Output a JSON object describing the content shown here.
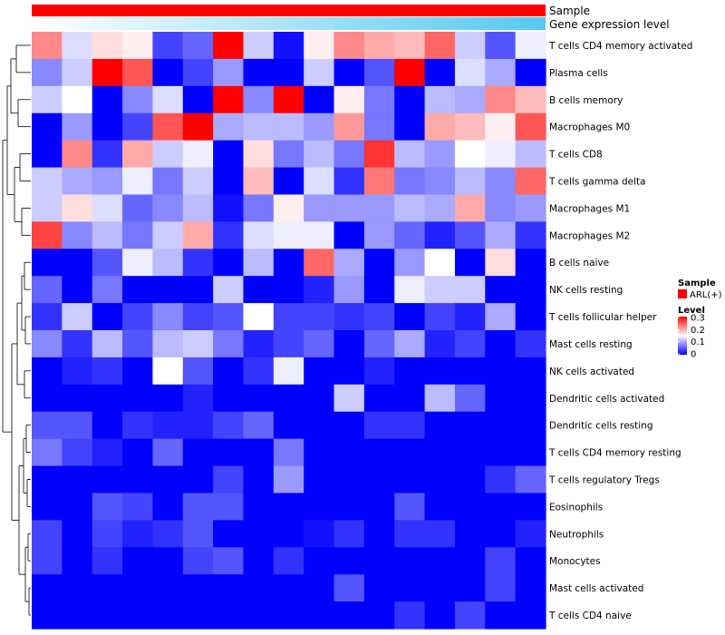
{
  "chart_data": {
    "type": "heatmap",
    "title": "",
    "annotations": [
      {
        "name": "Sample",
        "style": "solid",
        "color": "#ff0000"
      },
      {
        "name": "Gene expression level",
        "style": "gradient",
        "colors": [
          "#ffffff",
          "#55c8f0"
        ]
      }
    ],
    "rows": [
      "T cells CD4 memory activated",
      "Plasma cells",
      "B cells memory",
      "Macrophages M0",
      "T cells CD8",
      "T cells gamma delta",
      "Macrophages M1",
      "Macrophages M2",
      "B cells naive",
      "NK cells resting",
      "T cells follicular helper",
      "Mast cells resting",
      "NK cells activated",
      "Dendritic cells activated",
      "Dendritic cells resting",
      "T cells CD4 memory resting",
      "T cells regulatory  Tregs",
      "Eosinophils",
      "Neutrophils",
      "Monocytes",
      "Mast cells activated",
      "T cells CD4 naive"
    ],
    "n_columns": 17,
    "values": [
      [
        0.22,
        0.13,
        0.17,
        0.16,
        0.04,
        0.06,
        0.3,
        0.12,
        0.01,
        0.16,
        0.22,
        0.2,
        0.19,
        0.24,
        0.12,
        0.05,
        0.14
      ],
      [
        0.08,
        0.12,
        0.3,
        0.25,
        0.0,
        0.04,
        0.09,
        0.0,
        0.0,
        0.12,
        0.0,
        0.05,
        0.3,
        0.0,
        0.13,
        0.1,
        0.0
      ],
      [
        0.12,
        0.15,
        0.0,
        0.08,
        0.13,
        0.0,
        0.3,
        0.08,
        0.3,
        0.0,
        0.16,
        0.07,
        0.0,
        0.11,
        0.1,
        0.22,
        0.19
      ],
      [
        0.0,
        0.09,
        0.0,
        0.04,
        0.25,
        0.3,
        0.1,
        0.11,
        0.11,
        0.09,
        0.21,
        0.07,
        0.0,
        0.2,
        0.19,
        0.16,
        0.25
      ],
      [
        0.0,
        0.22,
        0.03,
        0.2,
        0.12,
        0.14,
        0.0,
        0.17,
        0.07,
        0.11,
        0.07,
        0.27,
        0.11,
        0.09,
        0.15,
        0.14,
        0.11
      ],
      [
        0.12,
        0.1,
        0.09,
        0.14,
        0.07,
        0.12,
        0.0,
        0.19,
        0.0,
        0.13,
        0.03,
        0.23,
        0.07,
        0.08,
        0.11,
        0.08,
        0.24
      ],
      [
        0.12,
        0.17,
        0.13,
        0.06,
        0.08,
        0.11,
        0.01,
        0.07,
        0.16,
        0.09,
        0.09,
        0.09,
        0.11,
        0.1,
        0.2,
        0.08,
        0.09
      ],
      [
        0.26,
        0.08,
        0.11,
        0.07,
        0.12,
        0.2,
        0.03,
        0.13,
        0.14,
        0.14,
        0.0,
        0.09,
        0.06,
        0.02,
        0.05,
        0.1,
        0.03
      ],
      [
        0.0,
        0.0,
        0.05,
        0.14,
        0.11,
        0.03,
        0.0,
        0.11,
        0.0,
        0.24,
        0.1,
        0.0,
        0.09,
        0.15,
        0.0,
        0.17,
        0.0
      ],
      [
        0.06,
        0.0,
        0.07,
        0.0,
        0.0,
        0.0,
        0.12,
        0.0,
        0.0,
        0.02,
        0.09,
        0.0,
        0.14,
        0.12,
        0.12,
        0.0,
        0.0
      ],
      [
        0.03,
        0.12,
        0.0,
        0.04,
        0.08,
        0.04,
        0.05,
        0.15,
        0.04,
        0.04,
        0.03,
        0.04,
        0.0,
        0.04,
        0.02,
        0.1,
        0.0
      ],
      [
        0.08,
        0.03,
        0.11,
        0.05,
        0.11,
        0.12,
        0.07,
        0.02,
        0.04,
        0.06,
        0.0,
        0.06,
        0.1,
        0.02,
        0.04,
        0.0,
        0.03
      ],
      [
        0.0,
        0.02,
        0.03,
        0.0,
        0.15,
        0.05,
        0.0,
        0.03,
        0.14,
        0.0,
        0.0,
        0.02,
        0.0,
        0.0,
        0.0,
        0.0,
        0.0
      ],
      [
        0.0,
        0.0,
        0.0,
        0.0,
        0.0,
        0.02,
        0.0,
        0.0,
        0.0,
        0.0,
        0.12,
        0.0,
        0.0,
        0.11,
        0.06,
        0.0,
        0.0
      ],
      [
        0.05,
        0.05,
        0.0,
        0.03,
        0.02,
        0.02,
        0.04,
        0.06,
        0.0,
        0.0,
        0.0,
        0.03,
        0.03,
        0.0,
        0.0,
        0.0,
        0.0
      ],
      [
        0.07,
        0.04,
        0.02,
        0.0,
        0.06,
        0.0,
        0.0,
        0.0,
        0.07,
        0.0,
        0.0,
        0.0,
        0.0,
        0.0,
        0.0,
        0.0,
        0.0
      ],
      [
        0.0,
        0.0,
        0.0,
        0.0,
        0.0,
        0.0,
        0.04,
        0.0,
        0.09,
        0.0,
        0.0,
        0.0,
        0.0,
        0.0,
        0.0,
        0.03,
        0.06
      ],
      [
        0.0,
        0.0,
        0.05,
        0.04,
        0.0,
        0.05,
        0.05,
        0.0,
        0.0,
        0.0,
        0.0,
        0.0,
        0.05,
        0.0,
        0.0,
        0.0,
        0.0
      ],
      [
        0.04,
        0.0,
        0.04,
        0.02,
        0.03,
        0.05,
        0.0,
        0.0,
        0.0,
        0.01,
        0.03,
        0.0,
        0.03,
        0.03,
        0.0,
        0.0,
        0.02
      ],
      [
        0.04,
        0.0,
        0.03,
        0.0,
        0.0,
        0.04,
        0.05,
        0.0,
        0.03,
        0.0,
        0.0,
        0.0,
        0.0,
        0.0,
        0.0,
        0.04,
        0.0
      ],
      [
        0.0,
        0.0,
        0.0,
        0.0,
        0.0,
        0.0,
        0.0,
        0.0,
        0.0,
        0.0,
        0.05,
        0.0,
        0.0,
        0.0,
        0.0,
        0.04,
        0.0
      ],
      [
        0.0,
        0.0,
        0.0,
        0.0,
        0.0,
        0.0,
        0.0,
        0.0,
        0.0,
        0.0,
        0.0,
        0.0,
        0.03,
        0.0,
        0.04,
        0.0,
        0.0
      ]
    ],
    "color_scale": {
      "low": "#0000ff",
      "mid": "#ffffff",
      "high": "#ff0000",
      "min": 0,
      "mid_value": 0.15,
      "max": 0.3
    },
    "legend": {
      "sample_title": "Sample",
      "sample_entry": "ARL(+)",
      "sample_color": "#ff0000",
      "level_title": "Level",
      "level_ticks": [
        "0.3",
        "0.2",
        "0.1",
        "0"
      ],
      "placement": "right"
    },
    "row_dendrogram": true
  }
}
